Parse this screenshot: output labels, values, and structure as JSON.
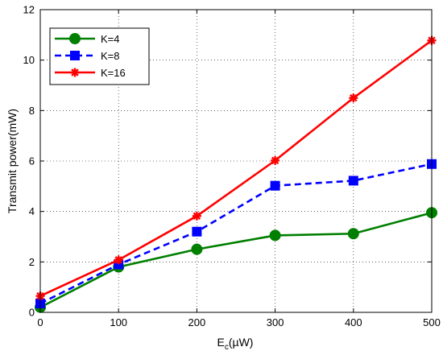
{
  "chart_data": {
    "type": "line",
    "title": "",
    "xlabel": "E",
    "xlabel_sub": "c",
    "xlabel_unit": "(µW)",
    "ylabel": "Transmit power(mW)",
    "xlim": [
      0,
      500
    ],
    "ylim": [
      0,
      12
    ],
    "x_ticks": [
      0,
      100,
      200,
      300,
      400,
      500
    ],
    "y_ticks": [
      0,
      2,
      4,
      6,
      8,
      10,
      12
    ],
    "grid": true,
    "legend_position": "top-left",
    "x": [
      0,
      100,
      200,
      300,
      400,
      500
    ],
    "series": [
      {
        "name": "K=4",
        "values": [
          0.2,
          1.8,
          2.5,
          3.05,
          3.12,
          3.95
        ],
        "color": "#007f00",
        "dash": "solid",
        "marker": "circle"
      },
      {
        "name": "K=8",
        "values": [
          0.35,
          1.9,
          3.2,
          5.02,
          5.22,
          5.88
        ],
        "color": "#0000ff",
        "dash": "dashed",
        "marker": "square"
      },
      {
        "name": "K=16",
        "values": [
          0.65,
          2.08,
          3.82,
          6.02,
          8.5,
          10.78
        ],
        "color": "#ff0000",
        "dash": "solid",
        "marker": "asterisk"
      }
    ]
  }
}
